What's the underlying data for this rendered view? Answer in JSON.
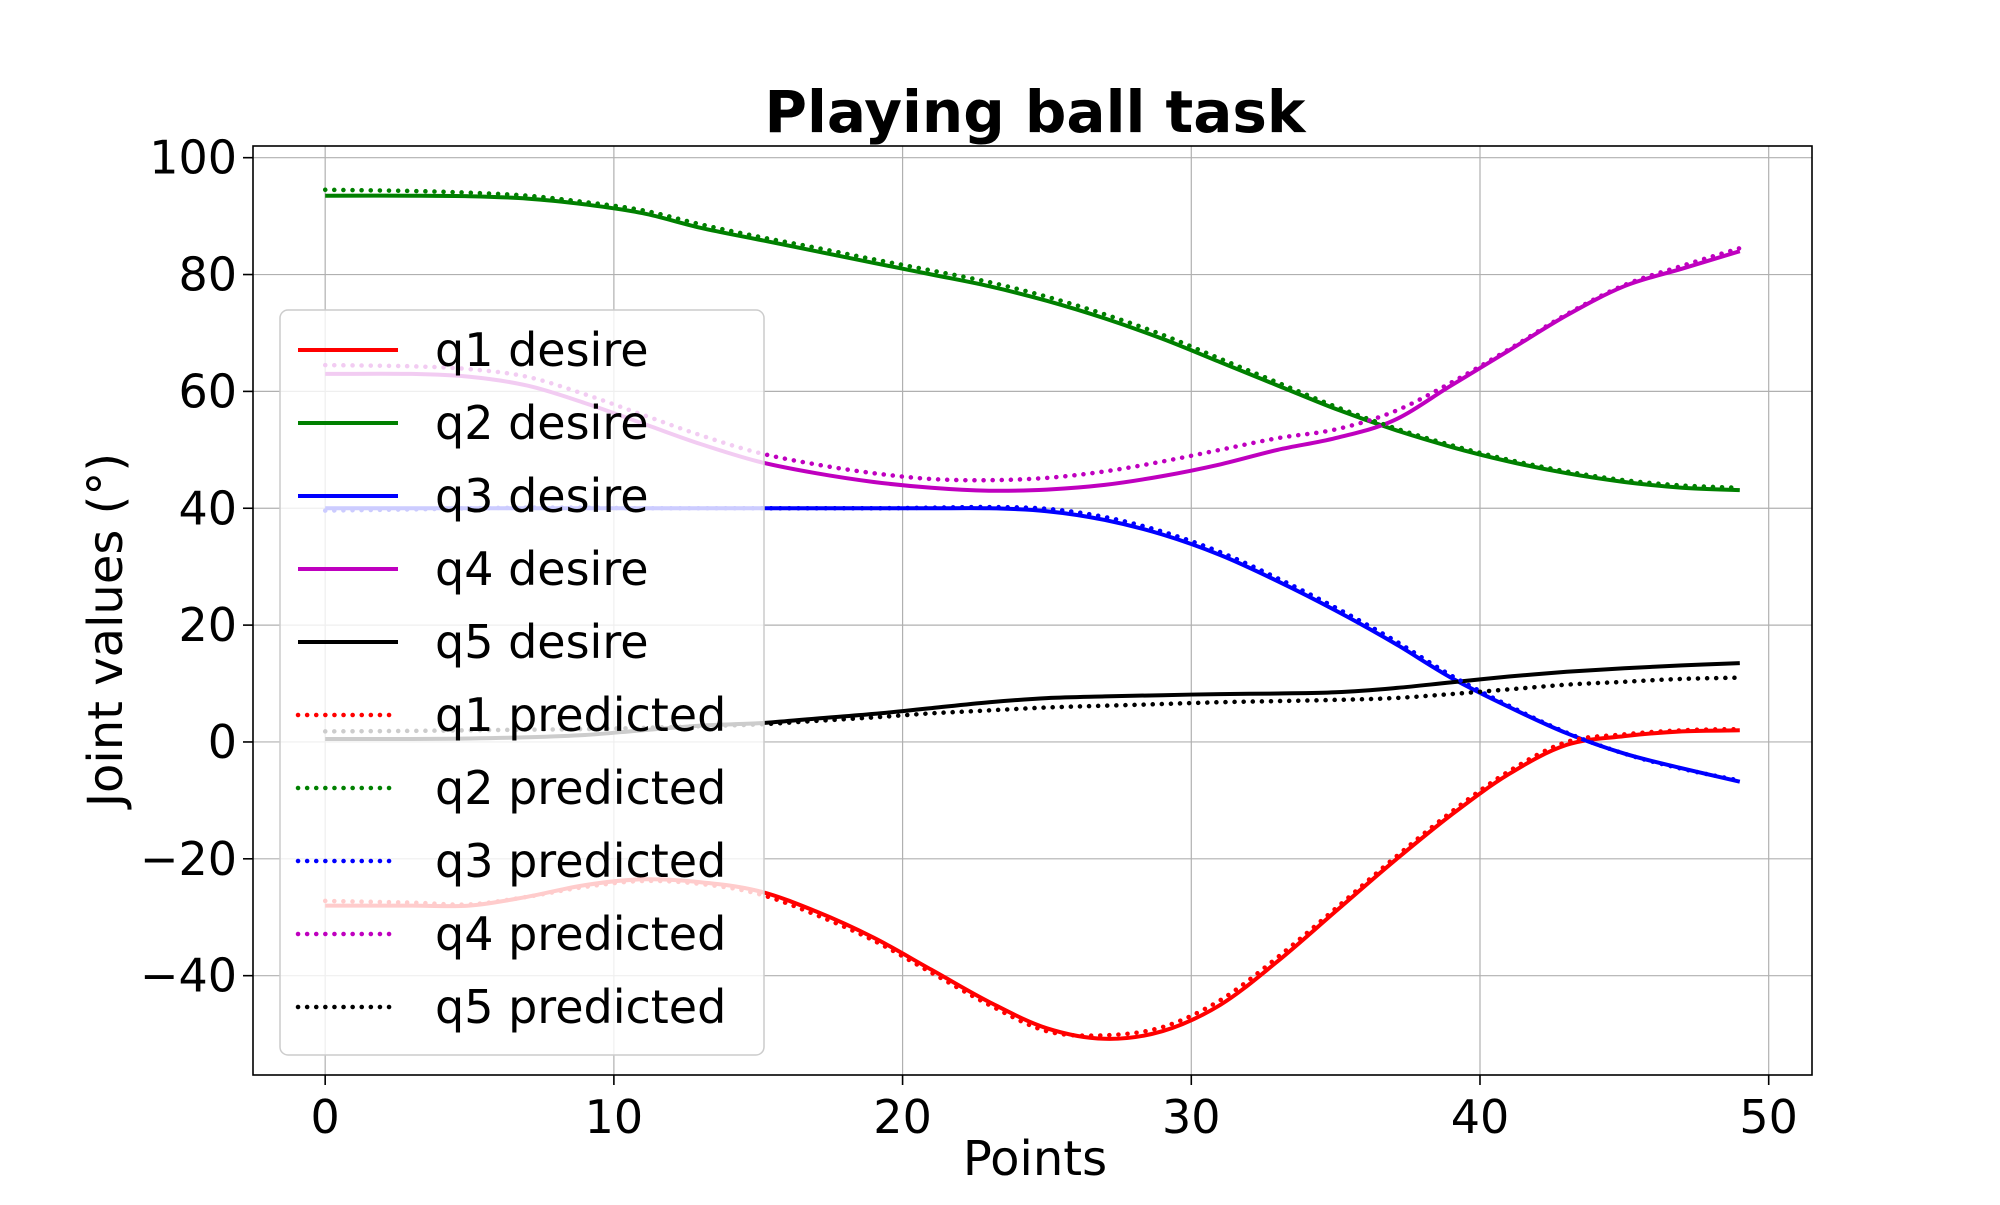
{
  "chart_data": {
    "type": "line",
    "title": "Playing ball task",
    "xlabel": "Points",
    "ylabel": "Joint values (°)",
    "xlim": [
      -2.5,
      51.5
    ],
    "ylim": [
      -57,
      102
    ],
    "xticks": [
      0,
      10,
      20,
      30,
      40,
      50
    ],
    "yticks": [
      -40,
      -20,
      0,
      20,
      40,
      60,
      80,
      100
    ],
    "xtick_labels": [
      "0",
      "10",
      "20",
      "30",
      "40",
      "50"
    ],
    "ytick_labels": [
      "−40",
      "−20",
      "0",
      "20",
      "40",
      "60",
      "80",
      "100"
    ],
    "grid": true,
    "legend_position": "center-left",
    "x": [
      0,
      3,
      5,
      7,
      9,
      11,
      13,
      15,
      17,
      19,
      21,
      23,
      25,
      27,
      29,
      31,
      33,
      35,
      37,
      39,
      41,
      43,
      45,
      47,
      49
    ],
    "series": [
      {
        "name": "q1 desire",
        "color": "#ff0000",
        "style": "solid",
        "values": [
          -28,
          -28,
          -28,
          -26.5,
          -24.5,
          -23.5,
          -24,
          -25.5,
          -29,
          -33.5,
          -39,
          -44.5,
          -49,
          -50.8,
          -49.5,
          -45,
          -37.5,
          -29,
          -20.5,
          -12.5,
          -5.5,
          -0.5,
          1,
          1.8,
          2
        ]
      },
      {
        "name": "q2 desire",
        "color": "#008000",
        "style": "solid",
        "values": [
          93.5,
          93.5,
          93.4,
          93,
          92,
          90.5,
          88,
          86,
          84,
          82,
          80,
          78,
          75.5,
          72.5,
          69,
          65,
          61,
          57,
          53.5,
          50.5,
          48,
          46,
          44.5,
          43.5,
          43.1
        ]
      },
      {
        "name": "q3 desire",
        "color": "#0000ff",
        "style": "solid",
        "values": [
          40,
          40,
          40,
          40,
          40,
          40,
          40,
          40,
          40,
          40,
          40,
          40,
          39.5,
          38,
          35.5,
          32,
          27.5,
          22.5,
          17,
          11,
          6,
          1.5,
          -2,
          -4.5,
          -6.8
        ]
      },
      {
        "name": "q4 desire",
        "color": "#bf00bf",
        "style": "solid",
        "values": [
          63,
          63,
          62.5,
          61,
          58,
          54.5,
          51,
          48,
          46,
          44.5,
          43.5,
          43,
          43.2,
          44,
          45.5,
          47.5,
          50,
          52,
          55,
          61,
          67,
          73,
          78,
          81,
          84
        ]
      },
      {
        "name": "q5 desire",
        "color": "#000000",
        "style": "solid",
        "values": [
          0.5,
          0.5,
          0.6,
          0.8,
          1.2,
          2,
          2.8,
          3.2,
          4,
          4.8,
          5.8,
          6.8,
          7.5,
          7.8,
          8,
          8.2,
          8.3,
          8.5,
          9.2,
          10.2,
          11.2,
          12,
          12.6,
          13.1,
          13.5
        ]
      },
      {
        "name": "q1 predicted",
        "color": "#ff0000",
        "style": "dotted",
        "values": [
          -27.2,
          -27.5,
          -27.8,
          -26.5,
          -24.8,
          -23.8,
          -24.3,
          -26,
          -29.6,
          -34,
          -39.5,
          -45,
          -49.5,
          -50.2,
          -48.8,
          -44.2,
          -36.8,
          -28.5,
          -20,
          -12,
          -5,
          0,
          1.3,
          2,
          2.2
        ]
      },
      {
        "name": "q2 predicted",
        "color": "#008000",
        "style": "dotted",
        "values": [
          94.5,
          94.3,
          94,
          93.5,
          92.4,
          91,
          88.6,
          86.5,
          84.6,
          82.6,
          80.7,
          78.7,
          76.2,
          73.2,
          69.7,
          65.6,
          61.5,
          57.4,
          53.8,
          50.8,
          48.3,
          46.3,
          44.8,
          43.9,
          43.5
        ]
      },
      {
        "name": "q3 predicted",
        "color": "#0000ff",
        "style": "dotted",
        "values": [
          39.6,
          39.8,
          40,
          40.1,
          40.1,
          40,
          40,
          40,
          40,
          40,
          40.1,
          40.2,
          39.9,
          38.5,
          36,
          32.5,
          28,
          23,
          17.5,
          11.4,
          6.2,
          1.6,
          -2,
          -4.6,
          -6.6
        ]
      },
      {
        "name": "q4 predicted",
        "color": "#bf00bf",
        "style": "dotted",
        "values": [
          64.5,
          64.3,
          63.8,
          62.5,
          59.5,
          56,
          52.5,
          49.5,
          47.5,
          46,
          45,
          44.8,
          45.2,
          46.3,
          48,
          50,
          52,
          53.5,
          56.5,
          61.5,
          67.2,
          73.2,
          78.2,
          81.5,
          84.5
        ]
      },
      {
        "name": "q5 predicted",
        "color": "#000000",
        "style": "dotted",
        "values": [
          1.8,
          1.9,
          2,
          2.1,
          2.2,
          2.4,
          2.7,
          3,
          3.6,
          4.2,
          4.9,
          5.4,
          5.9,
          6.2,
          6.5,
          6.8,
          7,
          7.2,
          7.5,
          8.2,
          9,
          9.8,
          10.3,
          10.8,
          11
        ]
      }
    ]
  }
}
